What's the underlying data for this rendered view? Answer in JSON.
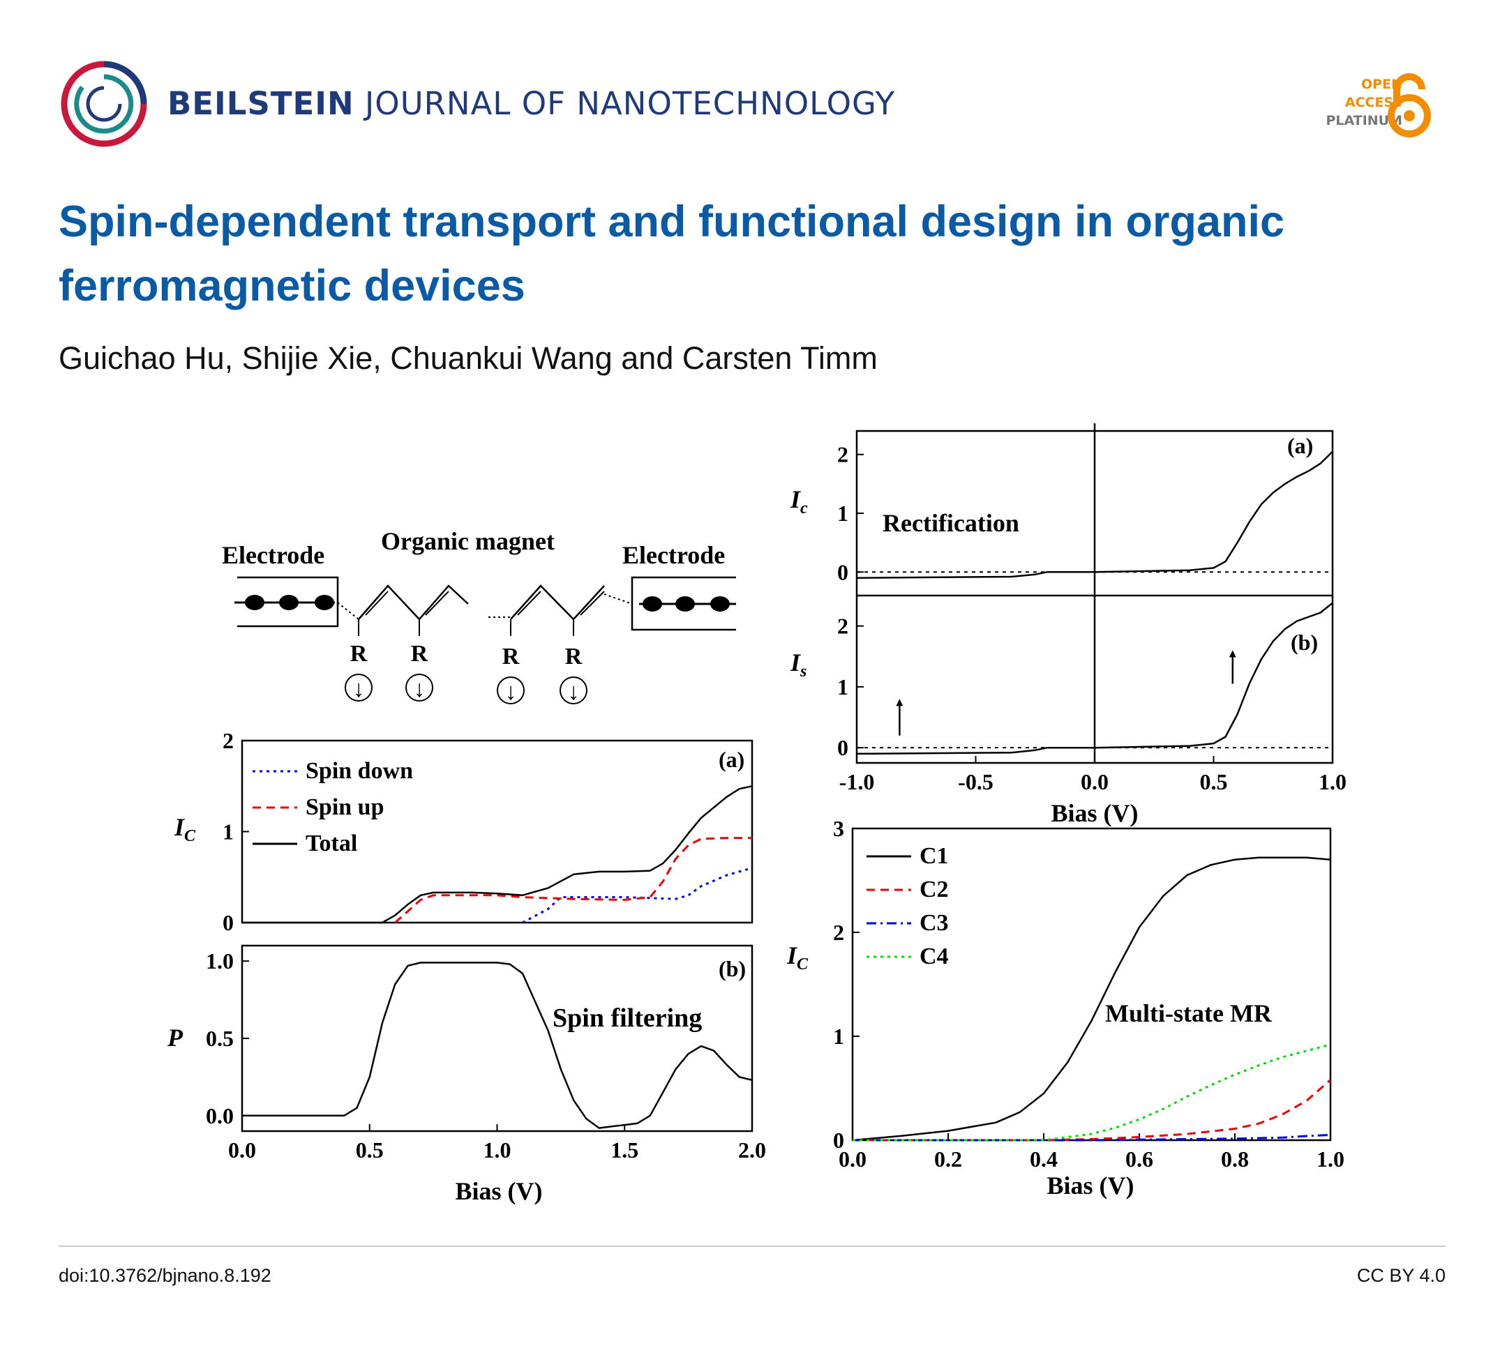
{
  "header": {
    "journal_bold": "BEILSTEIN",
    "journal_rest": "JOURNAL OF NANOTECHNOLOGY",
    "oa_line1": "OPEN",
    "oa_line2": "ACCESS",
    "oa_line3": "PLATINUM",
    "colors": {
      "journal": "#1f3a7a",
      "oa": "#f28c00",
      "title": "#0b5aa6"
    }
  },
  "article": {
    "title": "Spin-dependent transport and functional design in organic ferromagnetic devices",
    "authors": "Guichao Hu, Shijie Xie, Chuankui Wang and Carsten Timm"
  },
  "schematic": {
    "electrode_left": "Electrode",
    "magnet_label": "Organic magnet",
    "electrode_right": "Electrode",
    "radical_label": "R",
    "spin_symbol": "↓"
  },
  "footer": {
    "doi": "doi:10.3762/bjnano.8.192",
    "license": "CC BY 4.0"
  },
  "chart_data": [
    {
      "id": "left-a",
      "type": "line",
      "panel_label": "(a)",
      "ylabel": "I_C",
      "xlim": [
        0,
        2
      ],
      "ylim": [
        0,
        2
      ],
      "yticks": [
        "0",
        "1",
        "2"
      ],
      "series": [
        {
          "name": "Spin down",
          "style": "dotted",
          "color": "#0000ee",
          "x": [
            1.1,
            1.2,
            1.25,
            1.3,
            1.5,
            1.7,
            1.75,
            1.8,
            1.9,
            2.0
          ],
          "y": [
            0.0,
            0.15,
            0.28,
            0.28,
            0.28,
            0.26,
            0.3,
            0.4,
            0.52,
            0.6
          ]
        },
        {
          "name": "Spin up",
          "style": "dashed",
          "color": "#ee0000",
          "x": [
            0.6,
            0.7,
            0.75,
            0.9,
            1.0,
            1.1,
            1.2,
            1.3,
            1.5,
            1.6,
            1.65,
            1.7,
            1.75,
            1.8,
            1.9,
            2.0
          ],
          "y": [
            0.0,
            0.25,
            0.3,
            0.3,
            0.3,
            0.28,
            0.27,
            0.26,
            0.25,
            0.28,
            0.45,
            0.7,
            0.85,
            0.92,
            0.93,
            0.93
          ]
        },
        {
          "name": "Total",
          "style": "solid",
          "color": "#000000",
          "x": [
            0.0,
            0.55,
            0.6,
            0.65,
            0.7,
            0.75,
            0.9,
            1.0,
            1.1,
            1.2,
            1.3,
            1.4,
            1.5,
            1.6,
            1.65,
            1.7,
            1.75,
            1.8,
            1.9,
            1.95,
            2.0
          ],
          "y": [
            0.0,
            0.0,
            0.08,
            0.2,
            0.3,
            0.33,
            0.33,
            0.32,
            0.3,
            0.38,
            0.53,
            0.56,
            0.56,
            0.57,
            0.65,
            0.8,
            0.98,
            1.15,
            1.38,
            1.47,
            1.5
          ]
        }
      ]
    },
    {
      "id": "left-b",
      "type": "line",
      "panel_label": "(b)",
      "ylabel": "P",
      "annotation": "Spin filtering",
      "xlim": [
        0,
        2
      ],
      "ylim": [
        -0.1,
        1.1
      ],
      "yticks": [
        "0.0",
        "0.5",
        "1.0"
      ],
      "xticks": [
        "0.0",
        "0.5",
        "1.0",
        "1.5",
        "2.0"
      ],
      "xlabel": "Bias (V)",
      "series": [
        {
          "name": "P",
          "style": "solid",
          "color": "#000000",
          "x": [
            0.0,
            0.4,
            0.45,
            0.5,
            0.55,
            0.6,
            0.65,
            0.7,
            0.75,
            1.0,
            1.05,
            1.1,
            1.2,
            1.25,
            1.3,
            1.35,
            1.4,
            1.45,
            1.5,
            1.55,
            1.6,
            1.65,
            1.7,
            1.75,
            1.8,
            1.85,
            1.9,
            1.95,
            2.0
          ],
          "y": [
            0.0,
            0.0,
            0.05,
            0.25,
            0.6,
            0.85,
            0.97,
            0.99,
            0.99,
            0.99,
            0.98,
            0.92,
            0.55,
            0.3,
            0.1,
            -0.02,
            -0.08,
            -0.07,
            -0.06,
            -0.05,
            0.0,
            0.15,
            0.3,
            0.4,
            0.45,
            0.42,
            0.33,
            0.25,
            0.23
          ]
        }
      ]
    },
    {
      "id": "right-a",
      "type": "line",
      "panel_label": "(a)",
      "ylabel": "I_c",
      "annotation": "Rectification",
      "xlim": [
        -1,
        1
      ],
      "ylim": [
        -0.4,
        2.4
      ],
      "yticks": [
        "0",
        "1",
        "2"
      ],
      "series": [
        {
          "name": "I_c",
          "style": "solid",
          "color": "#000000",
          "x": [
            -1.0,
            -0.35,
            -0.25,
            -0.2,
            0.0,
            0.4,
            0.5,
            0.55,
            0.6,
            0.65,
            0.7,
            0.75,
            0.8,
            0.85,
            0.9,
            0.95,
            1.0
          ],
          "y": [
            -0.1,
            -0.08,
            -0.04,
            0.0,
            0.0,
            0.03,
            0.07,
            0.18,
            0.5,
            0.85,
            1.15,
            1.35,
            1.5,
            1.62,
            1.72,
            1.85,
            2.05
          ]
        }
      ]
    },
    {
      "id": "right-b",
      "type": "line",
      "panel_label": "(b)",
      "ylabel": "I_s",
      "xlim": [
        -1,
        1
      ],
      "ylim": [
        -0.25,
        2.5
      ],
      "yticks": [
        "0",
        "1",
        "2"
      ],
      "xticks": [
        "-1.0",
        "-0.5",
        "0.0",
        "0.5",
        "1.0"
      ],
      "xlabel": "Bias (V)",
      "arrows": [
        {
          "x": -0.82,
          "y0": 0.2,
          "y1": 0.8
        },
        {
          "x": 0.58,
          "y0": 1.05,
          "y1": 1.6
        }
      ],
      "series": [
        {
          "name": "I_s",
          "style": "solid",
          "color": "#000000",
          "x": [
            -1.0,
            -0.35,
            -0.25,
            -0.2,
            0.0,
            0.4,
            0.5,
            0.55,
            0.6,
            0.65,
            0.7,
            0.75,
            0.8,
            0.85,
            0.9,
            0.95,
            1.0
          ],
          "y": [
            -0.1,
            -0.08,
            -0.04,
            0.0,
            0.0,
            0.03,
            0.07,
            0.18,
            0.55,
            1.05,
            1.45,
            1.75,
            1.95,
            2.08,
            2.15,
            2.22,
            2.38
          ]
        }
      ]
    },
    {
      "id": "right-c",
      "type": "line",
      "ylabel": "I_C",
      "annotation": "Multi-state MR",
      "xlim": [
        0,
        1
      ],
      "ylim": [
        0,
        3
      ],
      "yticks": [
        "0",
        "1",
        "2",
        "3"
      ],
      "xticks": [
        "0.0",
        "0.2",
        "0.4",
        "0.6",
        "0.8",
        "1.0"
      ],
      "xlabel": "Bias (V)",
      "series": [
        {
          "name": "C1",
          "style": "solid",
          "color": "#000000",
          "x": [
            0.0,
            0.1,
            0.2,
            0.3,
            0.35,
            0.4,
            0.45,
            0.5,
            0.55,
            0.6,
            0.65,
            0.7,
            0.75,
            0.8,
            0.85,
            0.9,
            0.95,
            1.0
          ],
          "y": [
            0.0,
            0.04,
            0.09,
            0.17,
            0.27,
            0.45,
            0.75,
            1.15,
            1.62,
            2.05,
            2.35,
            2.55,
            2.65,
            2.7,
            2.72,
            2.72,
            2.72,
            2.7
          ]
        },
        {
          "name": "C2",
          "style": "dashed",
          "color": "#ee0000",
          "x": [
            0.0,
            0.4,
            0.5,
            0.6,
            0.7,
            0.8,
            0.85,
            0.9,
            0.95,
            1.0
          ],
          "y": [
            0.0,
            0.0,
            0.01,
            0.03,
            0.06,
            0.11,
            0.16,
            0.25,
            0.38,
            0.58
          ]
        },
        {
          "name": "C3",
          "style": "dashdot",
          "color": "#0000ee",
          "x": [
            0.0,
            0.5,
            0.7,
            0.8,
            0.9,
            0.95,
            1.0
          ],
          "y": [
            0.0,
            0.0,
            0.01,
            0.015,
            0.025,
            0.04,
            0.05
          ]
        },
        {
          "name": "C4",
          "style": "dotted",
          "color": "#00dd00",
          "x": [
            0.0,
            0.4,
            0.5,
            0.55,
            0.6,
            0.65,
            0.7,
            0.75,
            0.8,
            0.85,
            0.9,
            0.95,
            1.0
          ],
          "y": [
            0.0,
            0.0,
            0.06,
            0.12,
            0.2,
            0.3,
            0.42,
            0.53,
            0.63,
            0.72,
            0.8,
            0.86,
            0.92
          ]
        }
      ]
    }
  ]
}
